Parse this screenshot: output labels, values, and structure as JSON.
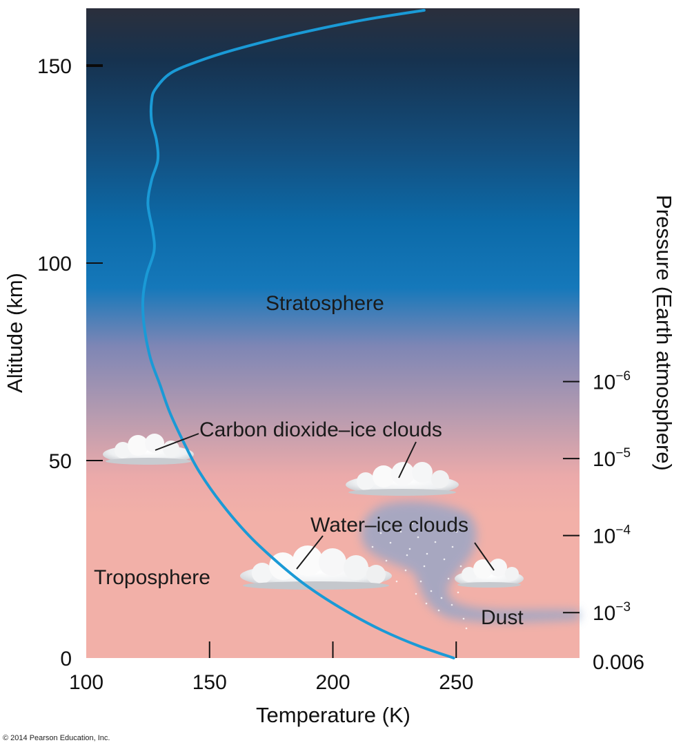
{
  "chart_data": {
    "type": "line",
    "xlabel": "Temperature (K)",
    "ylabel": "Altitude (km)",
    "y2label": "Pressure (Earth atmosphere)",
    "xlim": [
      100,
      300
    ],
    "ylim": [
      0,
      165
    ],
    "x_ticks": [
      100,
      150,
      200,
      250
    ],
    "y_ticks": [
      0,
      50,
      100,
      150
    ],
    "pressure_ticks": [
      {
        "base": "10",
        "exp": "−6",
        "altitude": 70
      },
      {
        "base": "10",
        "exp": "−5",
        "altitude": 50.5
      },
      {
        "base": "10",
        "exp": "−4",
        "altitude": 31
      },
      {
        "base": "10",
        "exp": "−3",
        "altitude": 11.5
      },
      {
        "base": "0.006",
        "exp": "",
        "altitude": 0
      }
    ],
    "series": [
      {
        "color": "#1a9ad6",
        "x": [
          249,
          235,
          220,
          205,
          190,
          178,
          166,
          155,
          146,
          140,
          134,
          130,
          126,
          123.5,
          123,
          124.5,
          127.5,
          127,
          125,
          126.5,
          129,
          128.5,
          126.5,
          126.5,
          128,
          134,
          145,
          160,
          185,
          212,
          237
        ],
        "y": [
          0,
          3,
          7,
          12,
          18,
          24,
          31,
          39,
          47,
          54,
          62,
          69,
          76,
          84,
          91,
          97,
          103,
          108,
          115,
          121,
          126,
          131,
          136,
          141,
          144,
          148,
          151,
          154,
          158,
          161.5,
          164
        ]
      }
    ],
    "annotations": [
      {
        "text": "Stratosphere"
      },
      {
        "text": "Carbon dioxide–ice clouds"
      },
      {
        "text": "Water–ice clouds"
      },
      {
        "text": "Troposphere"
      },
      {
        "text": "Dust"
      }
    ]
  },
  "copyright": "© 2014 Pearson Education, Inc."
}
